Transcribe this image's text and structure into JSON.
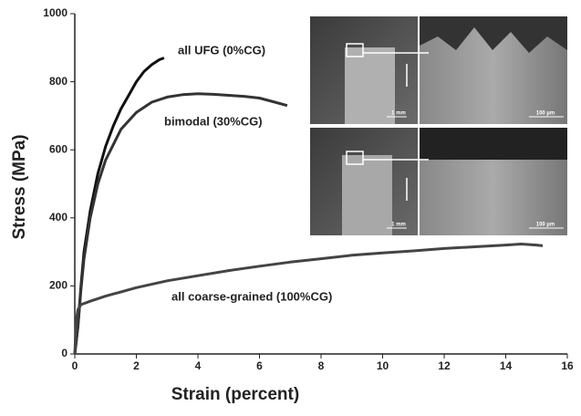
{
  "chart_data": {
    "type": "line",
    "xlabel": "Strain (percent)",
    "ylabel": "Stress (MPa)",
    "xlim": [
      0,
      16
    ],
    "xticks": [
      0,
      2,
      4,
      6,
      8,
      10,
      12,
      14,
      16
    ],
    "ylim": [
      0,
      1000
    ],
    "yticks": [
      0,
      200,
      400,
      600,
      800,
      1000
    ],
    "annotations": [
      "all UFG (0%CG)",
      "bimodal (30%CG)",
      "all coarse-grained (100%CG)"
    ],
    "inset_labels": [
      "1 mm",
      "100 µm",
      "1 mm",
      "100 µm"
    ],
    "series": [
      {
        "name": "all UFG (0%CG)",
        "color": "#111111",
        "x": [
          0,
          0.1,
          0.2,
          0.3,
          0.5,
          0.75,
          1,
          1.25,
          1.5,
          1.75,
          2,
          2.25,
          2.5,
          2.75,
          2.9
        ],
        "values": [
          0,
          80,
          200,
          300,
          420,
          530,
          610,
          670,
          720,
          760,
          800,
          830,
          850,
          865,
          870
        ]
      },
      {
        "name": "bimodal (30%CG)",
        "color": "#333333",
        "x": [
          0,
          0.1,
          0.2,
          0.3,
          0.5,
          0.75,
          1,
          1.5,
          2,
          2.5,
          3,
          3.5,
          4,
          4.5,
          5,
          5.5,
          6,
          6.5,
          6.9
        ],
        "values": [
          0,
          80,
          190,
          280,
          400,
          500,
          570,
          660,
          710,
          740,
          755,
          762,
          765,
          763,
          760,
          757,
          752,
          740,
          730
        ]
      },
      {
        "name": "all coarse-grained (100%CG)",
        "color": "#444444",
        "x": [
          0,
          0.05,
          0.1,
          0.2,
          0.5,
          1,
          2,
          3,
          4,
          5,
          6,
          7,
          8,
          9,
          10,
          11,
          12,
          13,
          14,
          14.5,
          15,
          15.2
        ],
        "values": [
          0,
          100,
          130,
          145,
          155,
          170,
          195,
          215,
          230,
          245,
          258,
          270,
          280,
          290,
          297,
          303,
          310,
          315,
          320,
          323,
          320,
          318
        ]
      }
    ]
  }
}
